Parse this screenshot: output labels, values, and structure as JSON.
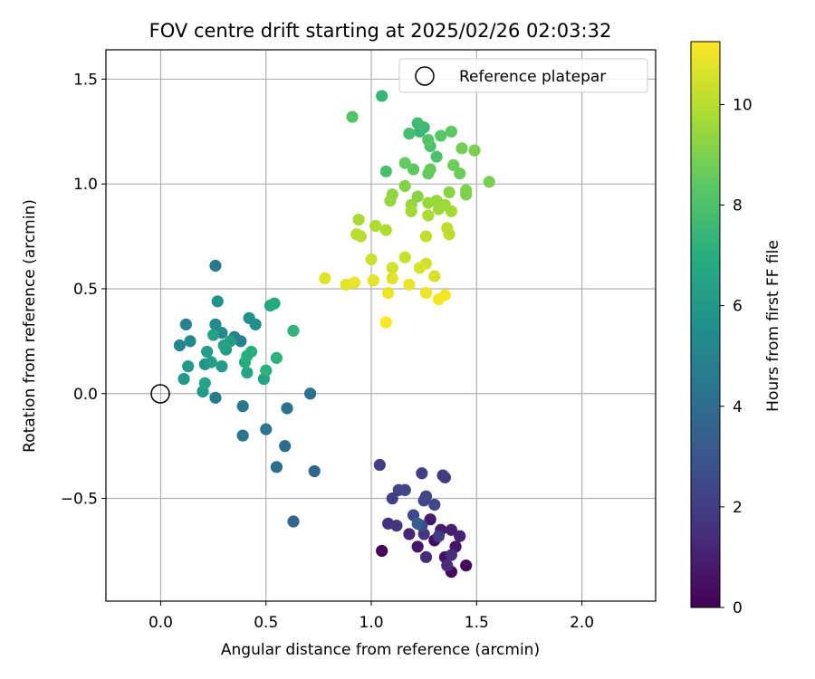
{
  "chart_data": {
    "type": "scatter",
    "title": "FOV centre drift starting at 2025/02/26 02:03:32",
    "xlabel": "Angular distance from reference (arcmin)",
    "ylabel": "Rotation from reference (arcmin)",
    "xlim": [
      -0.26,
      2.35
    ],
    "ylim": [
      -0.99,
      1.64
    ],
    "xticks": [
      0.0,
      0.5,
      1.0,
      1.5,
      2.0
    ],
    "xtick_labels": [
      "0.0",
      "0.5",
      "1.0",
      "1.5",
      "2.0"
    ],
    "yticks": [
      -0.5,
      0.0,
      0.5,
      1.0,
      1.5
    ],
    "ytick_labels": [
      "−0.5",
      "0.0",
      "0.5",
      "1.0",
      "1.5"
    ],
    "grid": true,
    "legend": {
      "position": "top-right",
      "entries": [
        "Reference platepar"
      ]
    },
    "reference_point": {
      "x": 0.0,
      "y": 0.0,
      "label": "Reference platepar"
    },
    "colorbar": {
      "label": "Hours from first FF file",
      "range": [
        0,
        11.25
      ],
      "ticks": [
        0,
        2,
        4,
        6,
        8,
        10
      ],
      "tick_labels": [
        "0",
        "2",
        "4",
        "6",
        "8",
        "10"
      ],
      "colormap": "viridis"
    },
    "points": [
      {
        "x": 1.05,
        "y": -0.75,
        "c": 0.1
      },
      {
        "x": 1.38,
        "y": -0.85,
        "c": 0.2
      },
      {
        "x": 1.45,
        "y": -0.82,
        "c": 0.3
      },
      {
        "x": 1.3,
        "y": -0.7,
        "c": 0.4
      },
      {
        "x": 1.35,
        "y": -0.78,
        "c": 0.5
      },
      {
        "x": 1.4,
        "y": -0.73,
        "c": 0.6
      },
      {
        "x": 1.22,
        "y": -0.73,
        "c": 0.7
      },
      {
        "x": 1.28,
        "y": -0.6,
        "c": 0.8
      },
      {
        "x": 1.33,
        "y": -0.65,
        "c": 0.9
      },
      {
        "x": 1.38,
        "y": -0.65,
        "c": 1.0
      },
      {
        "x": 1.42,
        "y": -0.68,
        "c": 1.1
      },
      {
        "x": 1.18,
        "y": -0.67,
        "c": 1.2
      },
      {
        "x": 1.26,
        "y": -0.78,
        "c": 1.3
      },
      {
        "x": 1.36,
        "y": -0.82,
        "c": 1.4
      },
      {
        "x": 1.38,
        "y": -0.77,
        "c": 1.5
      },
      {
        "x": 1.08,
        "y": -0.62,
        "c": 1.6
      },
      {
        "x": 1.12,
        "y": -0.63,
        "c": 1.7
      },
      {
        "x": 1.25,
        "y": -0.67,
        "c": 1.8
      },
      {
        "x": 1.32,
        "y": -0.68,
        "c": 1.9
      },
      {
        "x": 1.34,
        "y": -0.39,
        "c": 1.9
      },
      {
        "x": 1.35,
        "y": -0.4,
        "c": 2.0
      },
      {
        "x": 1.24,
        "y": -0.38,
        "c": 2.1
      },
      {
        "x": 1.04,
        "y": -0.34,
        "c": 2.1
      },
      {
        "x": 1.1,
        "y": -0.5,
        "c": 2.2
      },
      {
        "x": 1.13,
        "y": -0.46,
        "c": 2.3
      },
      {
        "x": 1.16,
        "y": -0.46,
        "c": 2.3
      },
      {
        "x": 1.26,
        "y": -0.49,
        "c": 2.4
      },
      {
        "x": 1.25,
        "y": -0.51,
        "c": 2.4
      },
      {
        "x": 1.2,
        "y": -0.58,
        "c": 2.5
      },
      {
        "x": 1.3,
        "y": -0.53,
        "c": 2.5
      },
      {
        "x": 1.24,
        "y": -0.63,
        "c": 2.6
      },
      {
        "x": 1.22,
        "y": -0.62,
        "c": 3.3
      },
      {
        "x": 0.63,
        "y": -0.61,
        "c": 3.7
      },
      {
        "x": 0.73,
        "y": -0.37,
        "c": 3.8
      },
      {
        "x": 0.55,
        "y": -0.35,
        "c": 3.9
      },
      {
        "x": 0.59,
        "y": -0.25,
        "c": 4.0
      },
      {
        "x": 0.71,
        "y": 0.0,
        "c": 4.1
      },
      {
        "x": 0.6,
        "y": -0.07,
        "c": 4.2
      },
      {
        "x": 0.39,
        "y": -0.2,
        "c": 4.3
      },
      {
        "x": 0.5,
        "y": -0.17,
        "c": 4.4
      },
      {
        "x": 0.39,
        "y": -0.06,
        "c": 4.5
      },
      {
        "x": 0.26,
        "y": 0.61,
        "c": 4.6
      },
      {
        "x": 0.26,
        "y": -0.02,
        "c": 4.7
      },
      {
        "x": 0.38,
        "y": 0.25,
        "c": 4.8
      },
      {
        "x": 0.12,
        "y": 0.33,
        "c": 4.9
      },
      {
        "x": 0.35,
        "y": 0.27,
        "c": 5.0
      },
      {
        "x": 0.09,
        "y": 0.23,
        "c": 5.1
      },
      {
        "x": 0.14,
        "y": 0.25,
        "c": 5.2
      },
      {
        "x": 0.29,
        "y": 0.29,
        "c": 5.3
      },
      {
        "x": 0.26,
        "y": 0.33,
        "c": 5.4
      },
      {
        "x": 0.45,
        "y": 0.33,
        "c": 5.5
      },
      {
        "x": 0.42,
        "y": 0.36,
        "c": 5.6
      },
      {
        "x": 0.27,
        "y": 0.44,
        "c": 5.7
      },
      {
        "x": 0.21,
        "y": 0.14,
        "c": 5.8
      },
      {
        "x": 0.11,
        "y": 0.07,
        "c": 5.9
      },
      {
        "x": 0.2,
        "y": 0.01,
        "c": 6.0
      },
      {
        "x": 0.13,
        "y": 0.13,
        "c": 6.0
      },
      {
        "x": 0.29,
        "y": 0.13,
        "c": 6.1
      },
      {
        "x": 0.31,
        "y": 0.21,
        "c": 6.2
      },
      {
        "x": 0.22,
        "y": 0.2,
        "c": 6.2
      },
      {
        "x": 0.24,
        "y": 0.15,
        "c": 6.3
      },
      {
        "x": 0.33,
        "y": 0.25,
        "c": 6.3
      },
      {
        "x": 0.25,
        "y": 0.28,
        "c": 6.4
      },
      {
        "x": 0.3,
        "y": 0.23,
        "c": 6.4
      },
      {
        "x": 0.21,
        "y": 0.05,
        "c": 6.5
      },
      {
        "x": 0.49,
        "y": 0.07,
        "c": 6.5
      },
      {
        "x": 0.41,
        "y": 0.1,
        "c": 6.6
      },
      {
        "x": 0.52,
        "y": 0.42,
        "c": 6.7
      },
      {
        "x": 0.54,
        "y": 0.43,
        "c": 6.8
      },
      {
        "x": 0.41,
        "y": 0.18,
        "c": 6.9
      },
      {
        "x": 0.43,
        "y": 0.2,
        "c": 7.0
      },
      {
        "x": 0.4,
        "y": 0.15,
        "c": 7.0
      },
      {
        "x": 0.5,
        "y": 0.11,
        "c": 7.1
      },
      {
        "x": 0.55,
        "y": 0.17,
        "c": 7.2
      },
      {
        "x": 0.63,
        "y": 0.3,
        "c": 7.3
      },
      {
        "x": 1.05,
        "y": 1.42,
        "c": 7.4
      },
      {
        "x": 1.23,
        "y": 1.25,
        "c": 7.5
      },
      {
        "x": 1.25,
        "y": 1.27,
        "c": 7.6
      },
      {
        "x": 1.22,
        "y": 1.29,
        "c": 7.7
      },
      {
        "x": 1.18,
        "y": 1.24,
        "c": 7.8
      },
      {
        "x": 1.07,
        "y": 1.06,
        "c": 7.9
      },
      {
        "x": 1.28,
        "y": 1.18,
        "c": 8.0
      },
      {
        "x": 1.31,
        "y": 1.13,
        "c": 8.0
      },
      {
        "x": 0.91,
        "y": 1.32,
        "c": 8.1
      },
      {
        "x": 1.27,
        "y": 1.21,
        "c": 8.2
      },
      {
        "x": 1.33,
        "y": 1.23,
        "c": 8.3
      },
      {
        "x": 1.38,
        "y": 1.25,
        "c": 8.4
      },
      {
        "x": 1.2,
        "y": 1.07,
        "c": 8.4
      },
      {
        "x": 1.16,
        "y": 1.1,
        "c": 8.5
      },
      {
        "x": 1.27,
        "y": 1.05,
        "c": 8.5
      },
      {
        "x": 1.28,
        "y": 1.07,
        "c": 8.6
      },
      {
        "x": 1.39,
        "y": 1.09,
        "c": 8.7
      },
      {
        "x": 1.42,
        "y": 1.05,
        "c": 8.7
      },
      {
        "x": 1.43,
        "y": 1.17,
        "c": 8.8
      },
      {
        "x": 1.49,
        "y": 1.16,
        "c": 8.9
      },
      {
        "x": 1.56,
        "y": 1.01,
        "c": 8.9
      },
      {
        "x": 1.45,
        "y": 0.97,
        "c": 9.0
      },
      {
        "x": 1.45,
        "y": 0.95,
        "c": 9.0
      },
      {
        "x": 1.16,
        "y": 0.99,
        "c": 9.1
      },
      {
        "x": 1.37,
        "y": 0.96,
        "c": 9.2
      },
      {
        "x": 1.22,
        "y": 0.94,
        "c": 9.2
      },
      {
        "x": 1.1,
        "y": 0.95,
        "c": 9.3
      },
      {
        "x": 1.09,
        "y": 0.92,
        "c": 9.4
      },
      {
        "x": 1.19,
        "y": 0.9,
        "c": 9.4
      },
      {
        "x": 1.27,
        "y": 0.91,
        "c": 9.5
      },
      {
        "x": 1.31,
        "y": 0.92,
        "c": 9.5
      },
      {
        "x": 1.35,
        "y": 0.9,
        "c": 9.6
      },
      {
        "x": 1.32,
        "y": 0.88,
        "c": 9.6
      },
      {
        "x": 1.19,
        "y": 0.87,
        "c": 9.7
      },
      {
        "x": 1.38,
        "y": 0.87,
        "c": 9.7
      },
      {
        "x": 1.27,
        "y": 0.85,
        "c": 9.8
      },
      {
        "x": 0.94,
        "y": 0.83,
        "c": 9.8
      },
      {
        "x": 1.02,
        "y": 0.8,
        "c": 9.9
      },
      {
        "x": 1.07,
        "y": 0.78,
        "c": 9.9
      },
      {
        "x": 0.93,
        "y": 0.76,
        "c": 10.0
      },
      {
        "x": 0.95,
        "y": 0.75,
        "c": 10.0
      },
      {
        "x": 1.36,
        "y": 0.79,
        "c": 10.1
      },
      {
        "x": 1.37,
        "y": 0.76,
        "c": 10.1
      },
      {
        "x": 1.26,
        "y": 0.75,
        "c": 10.2
      },
      {
        "x": 1.16,
        "y": 0.65,
        "c": 10.3
      },
      {
        "x": 1.0,
        "y": 0.64,
        "c": 10.4
      },
      {
        "x": 1.1,
        "y": 0.6,
        "c": 10.5
      },
      {
        "x": 1.26,
        "y": 0.62,
        "c": 10.5
      },
      {
        "x": 1.23,
        "y": 0.6,
        "c": 10.6
      },
      {
        "x": 1.3,
        "y": 0.56,
        "c": 10.6
      },
      {
        "x": 0.78,
        "y": 0.55,
        "c": 10.7
      },
      {
        "x": 1.1,
        "y": 0.55,
        "c": 10.7
      },
      {
        "x": 1.01,
        "y": 0.54,
        "c": 10.8
      },
      {
        "x": 0.88,
        "y": 0.52,
        "c": 10.8
      },
      {
        "x": 0.92,
        "y": 0.53,
        "c": 10.9
      },
      {
        "x": 1.18,
        "y": 0.52,
        "c": 10.9
      },
      {
        "x": 1.08,
        "y": 0.48,
        "c": 11.0
      },
      {
        "x": 1.26,
        "y": 0.48,
        "c": 11.0
      },
      {
        "x": 1.35,
        "y": 0.47,
        "c": 11.1
      },
      {
        "x": 1.32,
        "y": 0.45,
        "c": 11.1
      },
      {
        "x": 1.07,
        "y": 0.34,
        "c": 11.2
      }
    ]
  }
}
